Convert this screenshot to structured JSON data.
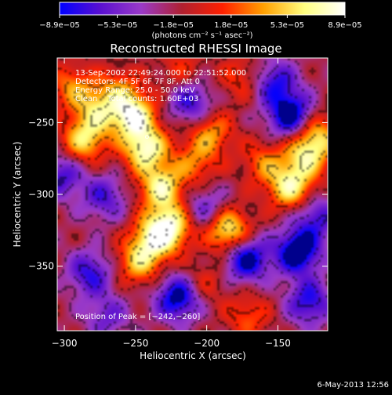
{
  "chart_data": {
    "type": "heatmap",
    "title": "Reconstructed RHESSI Image",
    "xlabel": "Heliocentric X (arcsec)",
    "ylabel": "Heliocentric Y (arcsec)",
    "xlim": [
      -305,
      -115
    ],
    "ylim": [
      -395,
      -205
    ],
    "x_ticks": [
      {
        "value": -300,
        "label": "−300"
      },
      {
        "value": -250,
        "label": "−250"
      },
      {
        "value": -200,
        "label": "−200"
      },
      {
        "value": -150,
        "label": "−150"
      }
    ],
    "y_ticks": [
      {
        "value": -250,
        "label": "−250"
      },
      {
        "value": -300,
        "label": "−300"
      },
      {
        "value": -350,
        "label": "−350"
      }
    ],
    "colorbar": {
      "min": -8.9e-05,
      "max": 8.9e-05,
      "tick_values": [
        -8.9e-05,
        -5.3e-05,
        -1.8e-05,
        1.8e-05,
        5.3e-05,
        8.9e-05
      ],
      "tick_labels": [
        "−8.9e−05",
        "−5.3e−05",
        "−1.8e−05",
        "1.8e−05",
        "5.3e−05",
        "8.9e−05"
      ],
      "units_label": "(photons cm⁻² s⁻¹ asec⁻²)",
      "colors": [
        "#0000ff",
        "#5a10d0",
        "#9a3ac8",
        "#b02030",
        "#ff2000",
        "#ffa000",
        "#ffff80",
        "#ffffff"
      ]
    },
    "info_lines": [
      "13-Sep-2002 22:49:24.000 to 22:51:52.000",
      "Detectors: 4F 5F 6F 7F 8F, Att 0",
      "Energy Range: 25.0 - 50.0 keV",
      "Clean    Total counts: 1.60E+03"
    ],
    "peak_label": "Position of Peak = [−242,−260]",
    "peak_position": [
      -242,
      -260
    ],
    "blobs": [
      {
        "x": -252,
        "y": -245,
        "v": 1.0
      },
      {
        "x": -243,
        "y": -268,
        "v": 0.95
      },
      {
        "x": -232,
        "y": -295,
        "v": 0.85
      },
      {
        "x": -226,
        "y": -322,
        "v": 0.9
      },
      {
        "x": -238,
        "y": -332,
        "v": 0.7
      },
      {
        "x": -248,
        "y": -348,
        "v": 0.6
      },
      {
        "x": -208,
        "y": -278,
        "v": 0.45
      },
      {
        "x": -197,
        "y": -257,
        "v": 0.55
      },
      {
        "x": -185,
        "y": -325,
        "v": 0.9
      },
      {
        "x": -160,
        "y": -278,
        "v": 0.45
      },
      {
        "x": -141,
        "y": -295,
        "v": 0.85
      },
      {
        "x": -130,
        "y": -273,
        "v": 0.7
      },
      {
        "x": -122,
        "y": -258,
        "v": 0.6
      },
      {
        "x": -286,
        "y": -262,
        "v": 0.75
      },
      {
        "x": -277,
        "y": -241,
        "v": 0.6
      },
      {
        "x": -295,
        "y": -225,
        "v": 0.5
      },
      {
        "x": -262,
        "y": -226,
        "v": 0.4
      },
      {
        "x": -218,
        "y": -213,
        "v": 0.3
      },
      {
        "x": -176,
        "y": -219,
        "v": 0.35
      },
      {
        "x": -171,
        "y": -385,
        "v": 0.4
      },
      {
        "x": -202,
        "y": -362,
        "v": 0.3
      },
      {
        "x": -136,
        "y": -340,
        "v": -0.95
      },
      {
        "x": -172,
        "y": -345,
        "v": -0.85
      },
      {
        "x": -141,
        "y": -245,
        "v": -0.9
      },
      {
        "x": -152,
        "y": -222,
        "v": -0.6
      },
      {
        "x": -211,
        "y": -236,
        "v": -0.6
      },
      {
        "x": -220,
        "y": -372,
        "v": -0.85
      },
      {
        "x": -282,
        "y": -355,
        "v": -0.6
      },
      {
        "x": -302,
        "y": -287,
        "v": -0.55
      },
      {
        "x": -272,
        "y": -302,
        "v": -0.5
      },
      {
        "x": -201,
        "y": -310,
        "v": -0.45
      },
      {
        "x": -123,
        "y": -316,
        "v": -0.55
      },
      {
        "x": -270,
        "y": -385,
        "v": -0.4
      },
      {
        "x": -128,
        "y": -375,
        "v": -0.65
      }
    ]
  },
  "footer": {
    "timestamp": "6-May-2013 12:56"
  }
}
